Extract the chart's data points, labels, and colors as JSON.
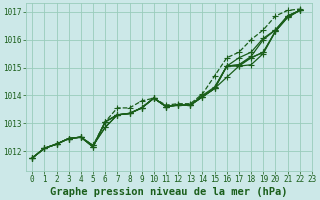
{
  "xlabel": "Graphe pression niveau de la mer (hPa)",
  "bg_color": "#cce8e8",
  "grid_color": "#99ccbb",
  "line_color": "#1a5e1a",
  "xlim": [
    -0.5,
    23
  ],
  "ylim": [
    1011.3,
    1017.3
  ],
  "xticks": [
    0,
    1,
    2,
    3,
    4,
    5,
    6,
    7,
    8,
    9,
    10,
    11,
    12,
    13,
    14,
    15,
    16,
    17,
    18,
    19,
    20,
    21,
    22,
    23
  ],
  "yticks": [
    1012,
    1013,
    1014,
    1015,
    1016,
    1017
  ],
  "series": [
    [
      1011.75,
      1012.1,
      1012.25,
      1012.45,
      1012.5,
      1012.2,
      1012.85,
      1013.3,
      1013.35,
      1013.55,
      1013.9,
      1013.6,
      1013.65,
      1013.65,
      1013.95,
      1014.25,
      1014.65,
      1015.05,
      1015.1,
      1015.5,
      1016.3,
      1016.8,
      1017.05
    ],
    [
      1011.75,
      1012.1,
      1012.25,
      1012.45,
      1012.5,
      1012.2,
      1012.85,
      1013.3,
      1013.35,
      1013.55,
      1013.9,
      1013.6,
      1013.65,
      1013.65,
      1013.95,
      1014.25,
      1015.05,
      1015.05,
      1015.35,
      1015.55,
      1016.3,
      1016.8,
      1017.05
    ],
    [
      1011.75,
      1012.1,
      1012.25,
      1012.45,
      1012.5,
      1012.15,
      1013.05,
      1013.3,
      1013.35,
      1013.55,
      1013.9,
      1013.6,
      1013.65,
      1013.65,
      1013.95,
      1014.25,
      1015.05,
      1015.1,
      1015.35,
      1015.55,
      1016.3,
      1016.85,
      1017.05
    ],
    [
      1011.75,
      1012.1,
      1012.25,
      1012.45,
      1012.5,
      1012.15,
      1013.05,
      1013.3,
      1013.35,
      1013.55,
      1013.9,
      1013.6,
      1013.65,
      1013.65,
      1013.95,
      1014.25,
      1015.05,
      1015.1,
      1015.4,
      1016.0,
      1016.35,
      1016.85,
      1017.05
    ],
    [
      1011.75,
      1012.1,
      1012.25,
      1012.45,
      1012.5,
      1012.15,
      1013.05,
      1013.3,
      1013.35,
      1013.55,
      1013.9,
      1013.6,
      1013.65,
      1013.65,
      1014.0,
      1014.3,
      1015.05,
      1015.35,
      1015.55,
      1016.05,
      1016.35,
      1016.85,
      1017.05
    ]
  ],
  "series_top": [
    1011.75,
    1012.1,
    1012.25,
    1012.45,
    1012.5,
    1012.2,
    1013.05,
    1013.55,
    1013.55,
    1013.8,
    1013.9,
    1013.65,
    1013.7,
    1013.7,
    1014.05,
    1014.7,
    1015.35,
    1015.55,
    1016.0,
    1016.35,
    1016.85,
    1017.05,
    1017.1
  ],
  "marker": "+",
  "markersize": 4,
  "linewidth": 0.9,
  "xlabel_fontsize": 7.5,
  "tick_fontsize": 5.5
}
